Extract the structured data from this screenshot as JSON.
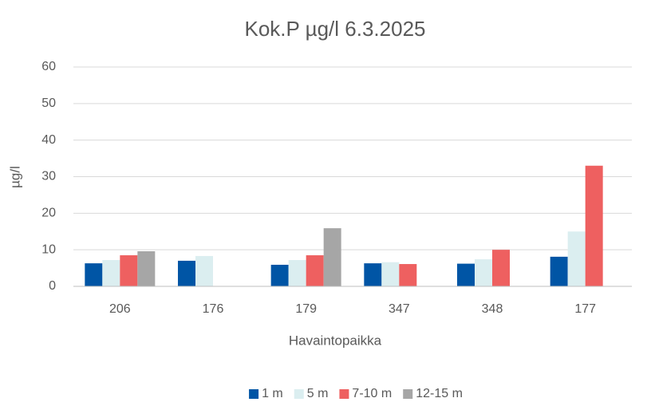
{
  "chart_data": {
    "type": "bar",
    "title": "Kok.P µg/l 6.3.2025",
    "x_label": "Havaintopaikka",
    "y_label": "µg/l",
    "categories": [
      "206",
      "176",
      "179",
      "347",
      "348",
      "177"
    ],
    "series": [
      {
        "name": "1 m",
        "color": "#0055a5",
        "values": [
          6.3,
          7.0,
          5.9,
          6.3,
          6.2,
          8.1
        ]
      },
      {
        "name": "5 m",
        "color": "#dbeef0",
        "values": [
          7.2,
          8.3,
          7.2,
          6.6,
          7.4,
          15.0
        ]
      },
      {
        "name": "7-10 m",
        "color": "#ee6060",
        "values": [
          8.5,
          null,
          8.5,
          6.1,
          10.0,
          33.0
        ]
      },
      {
        "name": "12-15 m",
        "color": "#a6a6a6",
        "values": [
          9.6,
          null,
          15.9,
          null,
          null,
          null
        ]
      }
    ],
    "ylim": [
      0,
      60
    ],
    "yticks": [
      0,
      10,
      20,
      30,
      40,
      50,
      60
    ],
    "grid": true,
    "legend": "bottom"
  }
}
